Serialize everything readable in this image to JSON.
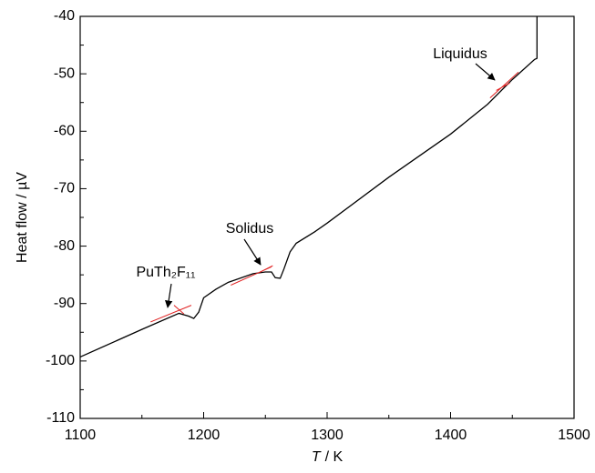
{
  "chart_data": {
    "type": "line",
    "x_label": {
      "symbol": "T",
      "unit": "/ K"
    },
    "y_label": "Heat flow / µV",
    "xlim": [
      1100,
      1500
    ],
    "xticks": [
      1100,
      1200,
      1300,
      1400,
      1500
    ],
    "xticks_minor": [
      1150,
      1250,
      1350,
      1450
    ],
    "ylim": [
      -110,
      -40
    ],
    "yticks": [
      -110,
      -100,
      -90,
      -80,
      -70,
      -60,
      -50,
      -40
    ],
    "yticks_minor": [
      -105,
      -95,
      -85,
      -75,
      -65,
      -55,
      -45
    ],
    "series": [
      {
        "color": "#000000",
        "x": [
          1100,
          1150,
          1180,
          1188,
          1192,
          1196,
          1200,
          1210,
          1220,
          1240,
          1250,
          1255,
          1258,
          1262,
          1265,
          1270,
          1275,
          1290,
          1300,
          1350,
          1400,
          1430,
          1450,
          1468,
          1470,
          1470
        ],
        "values": [
          -99.3,
          -94.5,
          -91.7,
          -92.2,
          -92.6,
          -91.5,
          -89,
          -87.5,
          -86.3,
          -84.8,
          -84.5,
          -84.5,
          -85.5,
          -85.6,
          -84,
          -81,
          -79.5,
          -77.5,
          -76,
          -68,
          -60.5,
          -55.3,
          -51,
          -47.5,
          -47.3,
          -40
        ]
      },
      {
        "color": "#e02020",
        "x": [
          1157,
          1190,
          null,
          1176,
          1184,
          null,
          1222,
          1255,
          null,
          1245,
          1256,
          null,
          1432,
          1455,
          null,
          1437,
          1448
        ],
        "values": [
          -93.2,
          -90.3,
          null,
          -90.3,
          -91.8,
          null,
          -86.8,
          -83.6,
          null,
          -84.6,
          -83.4,
          null,
          -54.2,
          -49.7,
          null,
          -52.9,
          -51.6
        ]
      }
    ],
    "annotations": [
      "PuTh₂F₁₁",
      "Solidus",
      "Liquidus"
    ]
  }
}
